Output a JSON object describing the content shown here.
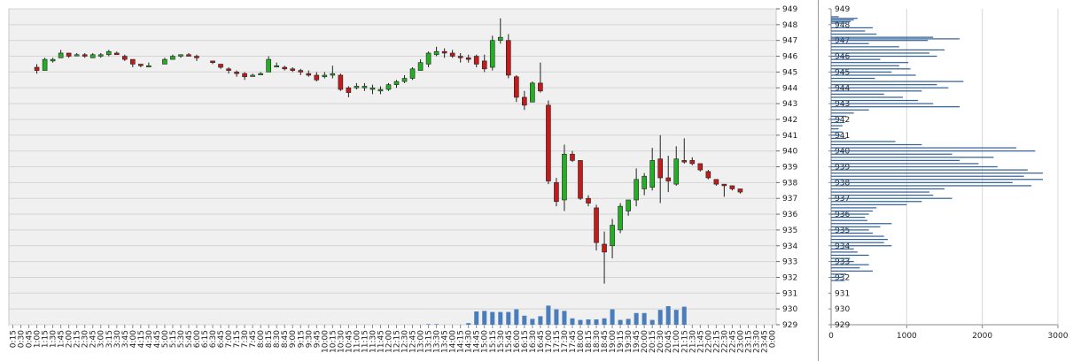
{
  "chart_data": [
    {
      "type": "candlestick",
      "colors": {
        "up": "#22b022",
        "down": "#c41a1a",
        "volume": "#4a7ebb",
        "grid": "#d4d4d4",
        "background": "#f0f0f0"
      },
      "ylim": [
        929,
        949
      ],
      "y_ticks": [
        "929",
        "930",
        "931",
        "932",
        "933",
        "934",
        "935",
        "936",
        "937",
        "938",
        "939",
        "940",
        "941",
        "942",
        "943",
        "944",
        "945",
        "946",
        "947",
        "948",
        "949"
      ],
      "x_tick_labels": [
        "0:15",
        "0:30",
        "0:45",
        "1:00",
        "1:15",
        "1:30",
        "1:45",
        "2:00",
        "2:15",
        "2:30",
        "2:45",
        "3:00",
        "3:15",
        "3:30",
        "3:45",
        "4:00",
        "4:15",
        "4:30",
        "4:45",
        "5:00",
        "5:15",
        "5:30",
        "5:45",
        "6:00",
        "6:15",
        "6:30",
        "6:45",
        "7:00",
        "7:15",
        "7:30",
        "7:45",
        "8:00",
        "8:15",
        "8:30",
        "8:45",
        "9:00",
        "9:15",
        "9:30",
        "9:45",
        "10:00",
        "10:15",
        "10:30",
        "10:45",
        "11:00",
        "11:15",
        "11:30",
        "11:45",
        "12:00",
        "12:15",
        "12:30",
        "12:45",
        "13:00",
        "13:15",
        "13:30",
        "13:45",
        "14:00",
        "14:15",
        "14:30",
        "14:45",
        "15:00",
        "15:15",
        "15:30",
        "15:45",
        "16:00",
        "16:15",
        "16:30",
        "16:45",
        "17:00",
        "17:15",
        "17:30",
        "17:45",
        "18:00",
        "18:15",
        "18:30",
        "18:45",
        "19:00",
        "19:15",
        "19:30",
        "19:45",
        "20:00",
        "20:15",
        "20:30",
        "20:45",
        "21:00",
        "21:15",
        "21:30",
        "21:45",
        "22:00",
        "22:15",
        "22:30",
        "22:45",
        "23:00",
        "23:15",
        "23:30",
        "23:45",
        "0:00"
      ],
      "series": [
        {
          "columns": [
            "time",
            "open",
            "high",
            "low",
            "close"
          ],
          "values": [
            [
              "1:00",
              945.3,
              945.5,
              944.9,
              945.1
            ],
            [
              "1:15",
              945.1,
              945.9,
              945.1,
              945.8
            ],
            [
              "1:30",
              945.7,
              945.9,
              945.6,
              945.8
            ],
            [
              "1:45",
              945.9,
              946.4,
              945.9,
              946.2
            ],
            [
              "2:00",
              946.2,
              946.2,
              945.9,
              946.0
            ],
            [
              "2:15",
              946.1,
              946.2,
              946.0,
              946.1
            ],
            [
              "2:30",
              946.1,
              946.2,
              945.9,
              946.0
            ],
            [
              "2:45",
              945.9,
              946.2,
              945.9,
              946.1
            ],
            [
              "3:00",
              946.0,
              946.2,
              945.9,
              946.1
            ],
            [
              "3:15",
              946.1,
              946.4,
              946.0,
              946.3
            ],
            [
              "3:30",
              946.2,
              946.3,
              946.1,
              946.1
            ],
            [
              "3:45",
              946.0,
              946.1,
              945.7,
              945.8
            ],
            [
              "4:00",
              945.8,
              945.8,
              945.3,
              945.5
            ],
            [
              "4:15",
              945.5,
              945.5,
              945.3,
              945.4
            ],
            [
              "4:30",
              945.4,
              945.6,
              945.3,
              945.4
            ],
            [
              "5:00",
              945.5,
              945.9,
              945.5,
              945.8
            ],
            [
              "5:15",
              945.8,
              946.1,
              945.8,
              946.0
            ],
            [
              "5:30",
              946.0,
              946.1,
              945.9,
              946.1
            ],
            [
              "5:45",
              946.1,
              946.2,
              946.0,
              946.0
            ],
            [
              "6:00",
              946.0,
              946.1,
              945.7,
              945.9
            ],
            [
              "6:30",
              945.7,
              945.7,
              945.5,
              945.6
            ],
            [
              "6:45",
              945.5,
              945.5,
              945.2,
              945.3
            ],
            [
              "7:00",
              945.2,
              945.3,
              944.9,
              945.1
            ],
            [
              "7:15",
              945.0,
              945.1,
              944.7,
              944.9
            ],
            [
              "7:30",
              944.9,
              945.0,
              944.5,
              944.7
            ],
            [
              "7:45",
              944.8,
              944.9,
              944.7,
              944.8
            ],
            [
              "8:00",
              944.9,
              945.0,
              944.8,
              944.9
            ],
            [
              "8:15",
              945.0,
              946.0,
              945.0,
              945.8
            ],
            [
              "8:30",
              945.4,
              945.6,
              945.3,
              945.4
            ],
            [
              "8:45",
              945.3,
              945.4,
              945.1,
              945.2
            ],
            [
              "9:00",
              945.2,
              945.3,
              945.0,
              945.1
            ],
            [
              "9:15",
              945.1,
              945.2,
              944.8,
              945.0
            ],
            [
              "9:30",
              944.9,
              945.1,
              944.7,
              944.8
            ],
            [
              "9:45",
              944.8,
              945.0,
              944.4,
              944.5
            ],
            [
              "10:00",
              944.7,
              945.0,
              944.6,
              944.8
            ],
            [
              "10:15",
              944.8,
              945.4,
              944.6,
              944.9
            ],
            [
              "10:30",
              944.8,
              944.9,
              943.8,
              943.9
            ],
            [
              "10:45",
              944.0,
              944.1,
              943.4,
              943.7
            ],
            [
              "11:00",
              944.0,
              944.3,
              943.9,
              944.1
            ],
            [
              "11:15",
              944.0,
              944.3,
              943.8,
              944.1
            ],
            [
              "11:30",
              943.9,
              944.2,
              943.6,
              944.0
            ],
            [
              "11:45",
              943.8,
              944.1,
              943.6,
              943.9
            ],
            [
              "12:00",
              943.9,
              944.3,
              943.8,
              944.2
            ],
            [
              "12:15",
              944.2,
              944.5,
              944.0,
              944.4
            ],
            [
              "12:30",
              944.4,
              944.8,
              944.3,
              944.6
            ],
            [
              "12:45",
              944.6,
              945.3,
              944.5,
              945.2
            ],
            [
              "13:00",
              945.1,
              945.8,
              945.1,
              945.6
            ],
            [
              "13:15",
              945.5,
              946.3,
              945.3,
              946.2
            ],
            [
              "13:30",
              946.1,
              946.6,
              946.0,
              946.3
            ],
            [
              "13:45",
              946.3,
              946.5,
              945.9,
              946.2
            ],
            [
              "14:00",
              946.2,
              946.4,
              945.9,
              946.0
            ],
            [
              "14:15",
              946.0,
              946.2,
              945.6,
              945.9
            ],
            [
              "14:30",
              945.9,
              946.1,
              945.6,
              945.8
            ],
            [
              "14:45",
              946.0,
              946.1,
              945.3,
              945.5
            ],
            [
              "15:00",
              945.7,
              946.1,
              945.0,
              945.2
            ],
            [
              "15:15",
              945.3,
              947.3,
              945.1,
              947.0
            ],
            [
              "15:30",
              947.0,
              948.4,
              946.8,
              947.2
            ],
            [
              "15:45",
              947.0,
              947.4,
              944.6,
              944.8
            ],
            [
              "16:00",
              944.7,
              944.8,
              943.1,
              943.4
            ],
            [
              "16:15",
              943.4,
              943.8,
              942.6,
              942.9
            ],
            [
              "16:30",
              943.1,
              944.4,
              943.1,
              944.3
            ],
            [
              "16:45",
              944.3,
              945.6,
              943.7,
              943.8
            ],
            [
              "17:00",
              942.9,
              943.2,
              937.9,
              938.1
            ],
            [
              "17:15",
              938.0,
              938.3,
              936.5,
              936.8
            ],
            [
              "17:30",
              936.9,
              940.4,
              936.2,
              939.8
            ],
            [
              "17:45",
              939.8,
              940.0,
              939.3,
              939.4
            ],
            [
              "18:00",
              939.4,
              939.4,
              936.9,
              937.0
            ],
            [
              "18:15",
              937.0,
              937.2,
              936.5,
              936.7
            ],
            [
              "18:30",
              936.4,
              936.6,
              933.7,
              934.2
            ],
            [
              "18:45",
              934.1,
              934.9,
              931.6,
              933.6
            ],
            [
              "19:00",
              934.0,
              935.7,
              933.2,
              935.3
            ],
            [
              "19:15",
              935.0,
              936.7,
              934.8,
              936.5
            ],
            [
              "19:30",
              936.2,
              936.9,
              935.9,
              936.9
            ],
            [
              "19:45",
              936.9,
              938.9,
              936.5,
              938.2
            ],
            [
              "20:00",
              937.6,
              938.6,
              937.2,
              938.4
            ],
            [
              "20:15",
              937.7,
              940.2,
              937.5,
              939.4
            ],
            [
              "20:30",
              939.5,
              941.0,
              936.7,
              938.3
            ],
            [
              "20:45",
              938.3,
              939.7,
              937.4,
              938.1
            ],
            [
              "21:00",
              937.9,
              940.3,
              937.8,
              939.5
            ],
            [
              "21:15",
              939.4,
              940.8,
              939.2,
              939.3
            ],
            [
              "21:30",
              939.4,
              939.6,
              939.1,
              939.2
            ],
            [
              "21:45",
              939.2,
              939.2,
              938.7,
              938.8
            ],
            [
              "22:00",
              938.7,
              938.8,
              938.2,
              938.3
            ],
            [
              "22:15",
              938.2,
              938.2,
              937.8,
              937.9
            ],
            [
              "22:30",
              937.9,
              937.9,
              937.1,
              937.8
            ],
            [
              "22:45",
              937.8,
              937.8,
              937.5,
              937.6
            ],
            [
              "23:00",
              937.6,
              937.6,
              937.3,
              937.4
            ]
          ]
        },
        {
          "name": "",
          "type": "bar",
          "times": [
            "13:15",
            "13:30",
            "14:30",
            "14:45",
            "15:00",
            "15:15",
            "15:30",
            "15:45",
            "16:00",
            "16:15",
            "16:30",
            "16:45",
            "17:00",
            "17:15",
            "17:30",
            "17:45",
            "18:00",
            "18:15",
            "18:30",
            "18:45",
            "19:00",
            "19:15",
            "19:30",
            "19:45",
            "20:00",
            "20:15",
            "20:30",
            "20:45",
            "21:00",
            "21:15"
          ],
          "values": [
            0.05,
            0.05,
            0.15,
            1.25,
            1.3,
            1.2,
            1.2,
            1.2,
            1.45,
            0.85,
            0.55,
            0.8,
            1.8,
            1.45,
            1.3,
            0.6,
            0.45,
            0.5,
            0.5,
            0.6,
            1.45,
            0.45,
            0.55,
            1.1,
            1.1,
            0.45,
            1.4,
            1.75,
            1.4,
            1.7
          ]
        }
      ]
    },
    {
      "type": "bar",
      "orientation": "horizontal",
      "xlim": [
        0,
        3000
      ],
      "ylim": [
        929,
        949
      ],
      "x_ticks": [
        "0",
        "1000",
        "2000",
        "3000"
      ],
      "y_ticks": [
        "929",
        "930",
        "931",
        "932",
        "933",
        "934",
        "935",
        "936",
        "937",
        "938",
        "939",
        "940",
        "941",
        "942",
        "943",
        "944",
        "945",
        "946",
        "947",
        "948",
        "949"
      ],
      "x": [
        948.5,
        948.4,
        948.3,
        948.2,
        948.1,
        947.8,
        947.6,
        947.4,
        947.2,
        947.1,
        947.0,
        946.8,
        946.6,
        946.4,
        946.2,
        946.0,
        945.8,
        945.6,
        945.4,
        945.2,
        945.0,
        944.8,
        944.6,
        944.4,
        944.2,
        944.0,
        943.8,
        943.6,
        943.4,
        943.2,
        943.0,
        942.8,
        942.6,
        942.4,
        942.2,
        942.0,
        941.8,
        941.6,
        941.4,
        941.2,
        941.0,
        940.8,
        940.6,
        940.4,
        940.2,
        940.0,
        939.8,
        939.6,
        939.4,
        939.2,
        939.0,
        938.8,
        938.6,
        938.4,
        938.2,
        938.0,
        937.8,
        937.6,
        937.4,
        937.2,
        937.0,
        936.8,
        936.6,
        936.4,
        936.2,
        936.0,
        935.8,
        935.6,
        935.4,
        935.2,
        935.0,
        934.8,
        934.6,
        934.4,
        934.2,
        934.0,
        933.8,
        933.6,
        933.4,
        933.2,
        933.0,
        932.8,
        932.6,
        932.4,
        932.2,
        932.0,
        931.8
      ],
      "values": [
        100,
        350,
        300,
        260,
        200,
        550,
        450,
        600,
        1350,
        1700,
        1280,
        500,
        900,
        1500,
        1300,
        1400,
        650,
        1020,
        900,
        1050,
        800,
        1120,
        580,
        1750,
        1400,
        1550,
        1200,
        700,
        950,
        1150,
        1350,
        1700,
        500,
        300,
        200,
        120,
        180,
        150,
        100,
        150,
        120,
        200,
        850,
        1200,
        2450,
        2700,
        1600,
        2150,
        1700,
        1950,
        2200,
        2600,
        2800,
        2550,
        2800,
        2400,
        2650,
        1500,
        1300,
        1350,
        1600,
        1200,
        1000,
        600,
        550,
        500,
        450,
        480,
        800,
        650,
        500,
        550,
        700,
        750,
        700,
        800,
        300,
        350,
        500,
        250,
        300,
        500,
        380,
        550,
        200,
        150,
        180
      ]
    }
  ]
}
